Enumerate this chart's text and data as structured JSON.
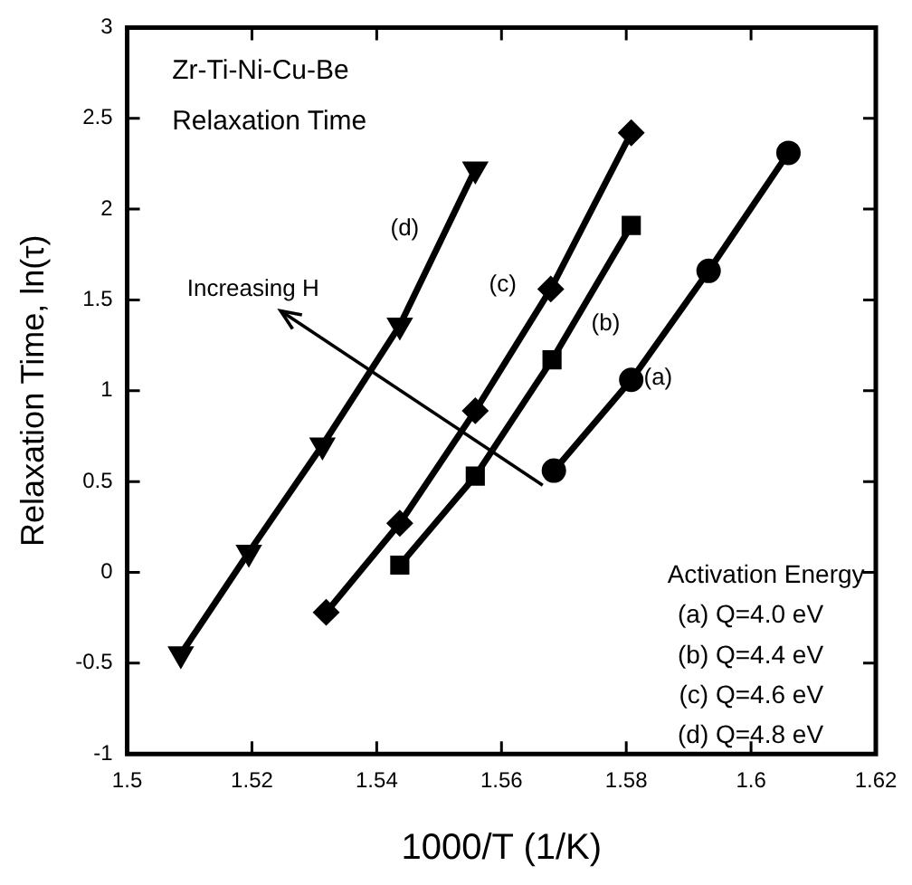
{
  "chart_data": {
    "type": "scatter",
    "xlabel": "1000/T (1/K)",
    "ylabel": "Relaxation Time, ln(τ)",
    "xlim": [
      1.5,
      1.62
    ],
    "xticks": [
      1.5,
      1.52,
      1.54,
      1.56,
      1.58,
      1.6,
      1.62
    ],
    "ylim": [
      -1,
      3
    ],
    "yticks": [
      -1,
      -0.5,
      0,
      0.5,
      1,
      1.5,
      2,
      2.5,
      3
    ],
    "grid": false,
    "legend": false,
    "line_style": "solid",
    "series": [
      {
        "type": "line",
        "marker": "circle",
        "color": "#000000",
        "x": [
          1.5684,
          1.5808,
          1.5932,
          1.606
        ],
        "values": [
          0.56,
          1.06,
          1.66,
          2.31
        ]
      },
      {
        "type": "line",
        "marker": "square",
        "color": "#000000",
        "x": [
          1.5437,
          1.5558,
          1.5681,
          1.5808
        ],
        "values": [
          0.04,
          0.53,
          1.17,
          1.91
        ]
      },
      {
        "type": "line",
        "marker": "diamond",
        "color": "#000000",
        "x": [
          1.5319,
          1.5437,
          1.5558,
          1.5679,
          1.5808
        ],
        "values": [
          -0.22,
          0.27,
          0.89,
          1.56,
          2.42
        ]
      },
      {
        "type": "line",
        "marker": "triangle",
        "color": "#000000",
        "x": [
          1.5086,
          1.5195,
          1.5313,
          1.5437,
          1.5558
        ],
        "values": [
          -0.45,
          0.11,
          0.7,
          1.36,
          2.22
        ]
      }
    ],
    "annotations": [
      "Zr-Ti-Ni-Cu-Be",
      "Relaxation Time",
      "Increasing H",
      "Activation Energy",
      "(a) Q=4.0 eV",
      "(b) Q=4.4 eV",
      "(c) Q=4.6 eV",
      "(d) Q=4.8 eV",
      "(a)",
      "(b)",
      "(c)",
      "(d)"
    ]
  }
}
